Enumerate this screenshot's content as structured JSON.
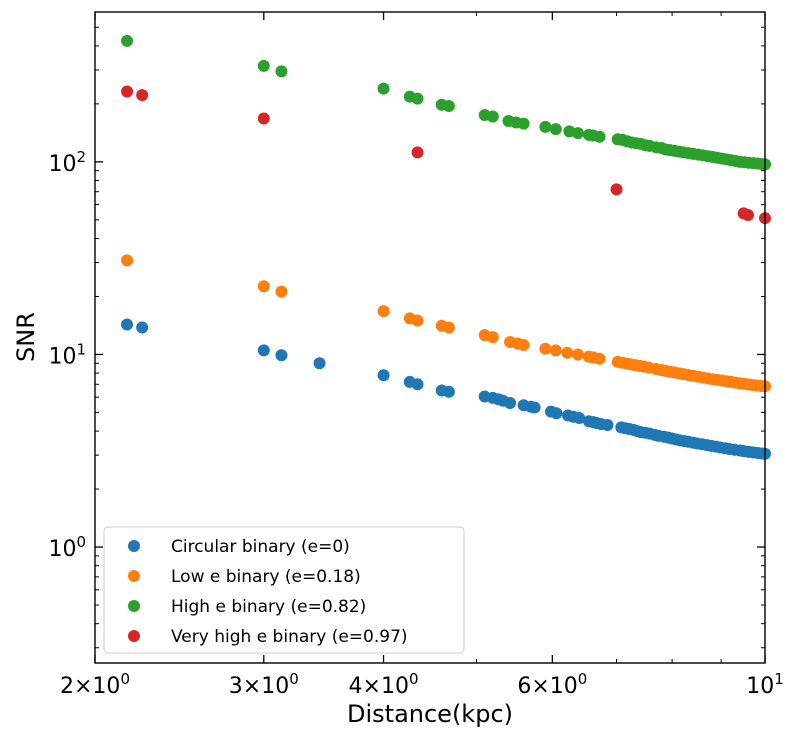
{
  "chart_data": {
    "type": "scatter",
    "xscale": "log",
    "yscale": "log",
    "xlabel": "Distance(kpc)",
    "ylabel": "SNR",
    "xlim": [
      2.0,
      10.0
    ],
    "ylim": [
      0.25,
      600
    ],
    "legend_position": "lower-left",
    "x_ticks": [
      {
        "value": 2,
        "base": "2",
        "exp": "0"
      },
      {
        "value": 3,
        "base": "3",
        "exp": "0"
      },
      {
        "value": 4,
        "base": "4",
        "exp": "0"
      },
      {
        "value": 6,
        "base": "6",
        "exp": "0"
      },
      {
        "value": 10,
        "base": "10",
        "exp": "1"
      }
    ],
    "y_ticks": [
      {
        "value": 1,
        "base": "10",
        "exp": "0"
      },
      {
        "value": 10,
        "base": "10",
        "exp": "1"
      },
      {
        "value": 100,
        "base": "10",
        "exp": "2"
      }
    ],
    "x_times_sign": "×",
    "series": [
      {
        "name": "Circular binary (e=0)",
        "color": "#1f77b4",
        "x": [
          2.16,
          2.24,
          3.0,
          3.13,
          3.43,
          4.0,
          4.26,
          4.34,
          4.6,
          4.68,
          5.1,
          5.2,
          5.27,
          5.33,
          5.42,
          5.6,
          5.7,
          5.75,
          5.98,
          6.06,
          6.23,
          6.31,
          6.4,
          6.55,
          6.62,
          6.68,
          6.75,
          6.85,
          7.08,
          7.15,
          7.22,
          7.3,
          7.36,
          7.42,
          7.5,
          7.58,
          7.68,
          7.75,
          7.85,
          7.93,
          8.0,
          8.08,
          8.16,
          8.24,
          8.32,
          8.42,
          8.5,
          8.6,
          8.7,
          8.79,
          8.89,
          8.98,
          9.08,
          9.18,
          9.3,
          9.42,
          9.5,
          9.62,
          9.72,
          9.83,
          9.93,
          10.0
        ],
        "y": [
          14.3,
          13.8,
          10.5,
          9.9,
          9.0,
          7.8,
          7.2,
          7.0,
          6.5,
          6.4,
          6.05,
          5.95,
          5.85,
          5.75,
          5.6,
          5.45,
          5.35,
          5.3,
          5.05,
          4.95,
          4.82,
          4.75,
          4.68,
          4.5,
          4.45,
          4.4,
          4.35,
          4.3,
          4.18,
          4.14,
          4.1,
          4.05,
          4.0,
          3.95,
          3.92,
          3.88,
          3.82,
          3.78,
          3.74,
          3.7,
          3.66,
          3.62,
          3.58,
          3.55,
          3.52,
          3.48,
          3.45,
          3.42,
          3.38,
          3.35,
          3.32,
          3.29,
          3.26,
          3.23,
          3.2,
          3.17,
          3.15,
          3.12,
          3.1,
          3.08,
          3.06,
          3.05
        ]
      },
      {
        "name": "Low e binary (e=0.18)",
        "color": "#ff7f0e",
        "x": [
          2.16,
          3.0,
          3.13,
          4.0,
          4.26,
          4.34,
          4.6,
          4.68,
          5.1,
          5.2,
          5.42,
          5.52,
          5.6,
          5.9,
          6.05,
          6.22,
          6.38,
          6.55,
          6.62,
          6.72,
          7.02,
          7.1,
          7.18,
          7.25,
          7.32,
          7.4,
          7.48,
          7.56,
          7.7,
          7.8,
          7.88,
          7.96,
          8.05,
          8.14,
          8.22,
          8.32,
          8.42,
          8.52,
          8.62,
          8.72,
          8.82,
          8.92,
          9.02,
          9.12,
          9.22,
          9.32,
          9.42,
          9.52,
          9.62,
          9.72,
          9.82,
          9.92,
          10.0
        ],
        "y": [
          30.8,
          22.6,
          21.2,
          16.8,
          15.4,
          15.0,
          14.1,
          13.8,
          12.6,
          12.3,
          11.6,
          11.4,
          11.2,
          10.7,
          10.5,
          10.2,
          10.0,
          9.75,
          9.65,
          9.5,
          9.15,
          9.05,
          8.96,
          8.88,
          8.8,
          8.72,
          8.64,
          8.56,
          8.4,
          8.3,
          8.22,
          8.14,
          8.06,
          7.98,
          7.9,
          7.82,
          7.74,
          7.66,
          7.58,
          7.5,
          7.44,
          7.38,
          7.32,
          7.26,
          7.2,
          7.14,
          7.08,
          7.03,
          6.98,
          6.94,
          6.9,
          6.86,
          6.84
        ]
      },
      {
        "name": "High e binary (e=0.82)",
        "color": "#2ca02c",
        "x": [
          2.16,
          3.0,
          3.13,
          4.0,
          4.26,
          4.34,
          4.6,
          4.68,
          5.1,
          5.2,
          5.4,
          5.5,
          5.6,
          5.9,
          6.05,
          6.25,
          6.38,
          6.55,
          6.62,
          6.72,
          7.02,
          7.1,
          7.18,
          7.26,
          7.34,
          7.42,
          7.5,
          7.58,
          7.7,
          7.8,
          7.88,
          7.96,
          8.05,
          8.14,
          8.22,
          8.32,
          8.42,
          8.52,
          8.62,
          8.72,
          8.82,
          8.92,
          9.02,
          9.12,
          9.22,
          9.32,
          9.42,
          9.52,
          9.62,
          9.72,
          9.82,
          9.92,
          10.0
        ],
        "y": [
          425,
          315,
          295,
          240,
          218,
          213,
          198,
          195,
          175,
          172,
          163,
          160,
          158,
          152,
          148,
          144,
          141,
          138,
          137,
          135,
          131,
          130,
          128,
          126,
          125,
          124,
          122,
          121,
          119,
          118,
          116,
          115,
          114,
          113,
          112,
          111,
          110,
          109,
          108,
          107,
          106,
          105,
          104,
          103,
          102,
          101,
          100,
          99.5,
          99,
          98.5,
          98,
          97.5,
          97
        ]
      },
      {
        "name": "Very high e binary (e=0.97)",
        "color": "#d62728",
        "x": [
          2.16,
          2.24,
          3.0,
          4.34,
          7.0,
          9.5,
          9.6,
          10.0
        ],
        "y": [
          232,
          222,
          168,
          112,
          72,
          54,
          53,
          51
        ]
      }
    ]
  }
}
